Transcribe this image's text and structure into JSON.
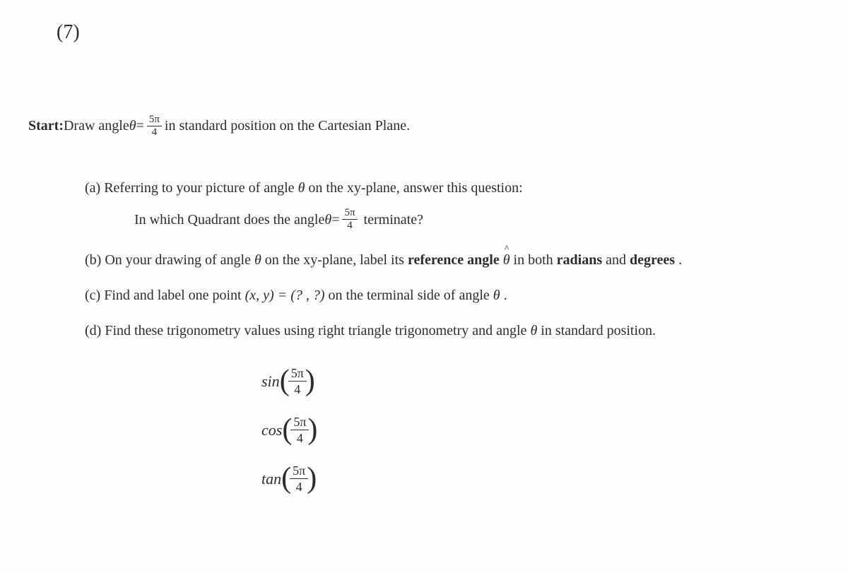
{
  "problem": {
    "number": "(7)",
    "start_label": "Start:",
    "start_text_before": " Draw angle ",
    "theta": "θ",
    "equals": " = ",
    "fraction_5pi_num": "5π",
    "fraction_5pi_den": "4",
    "start_text_after": " in standard position on the Cartesian Plane."
  },
  "parts": {
    "a": {
      "label": "(a) ",
      "text": "Referring to your picture of angle ",
      "text_after": " on the xy-plane, answer this question:",
      "quadrant_before": "In which Quadrant does the angle ",
      "quadrant_after": " terminate?"
    },
    "b": {
      "label": "(b) ",
      "text_before": "On your drawing of angle ",
      "text_mid": " on the xy-plane, label its ",
      "ref_angle": "reference angle ",
      "text_after_ref": " in both ",
      "radians": "radians",
      "and": " and ",
      "degrees": "degrees",
      "period": "."
    },
    "c": {
      "label": "(c) ",
      "text_before": "Find and label one point ",
      "point": "(x, y) = (? , ?)",
      "text_after": " on the terminal side of angle ",
      "period": "."
    },
    "d": {
      "label": "(d) ",
      "text": "Find these trigonometry values using right triangle trigonometry and angle ",
      "text_after": " in standard position."
    }
  },
  "trig": {
    "sin": "sin",
    "cos": "cos",
    "tan": "tan",
    "num": "5π",
    "den": "4"
  },
  "style": {
    "background_color": "#fdfdfc",
    "text_color": "#2c2c2c",
    "body_fontsize": 20,
    "number_fontsize": 28,
    "trig_fontsize": 22
  }
}
